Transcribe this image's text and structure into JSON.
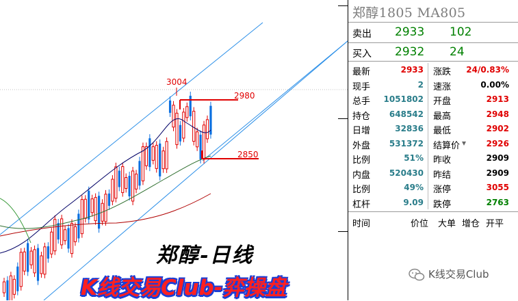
{
  "panel": {
    "title": "郑醇1805  MA805",
    "ask": {
      "label": "卖出",
      "price": "2933",
      "volume": "102"
    },
    "bid": {
      "label": "买入",
      "price": "2932",
      "volume": "24"
    },
    "left_rows": [
      {
        "label": "最新",
        "value": "2933",
        "color": "#e00000"
      },
      {
        "label": "现手",
        "value": "2",
        "color": "#2a7d8a"
      },
      {
        "label": "总手",
        "value": "1051802",
        "color": "#2a7d8a"
      },
      {
        "label": "持仓",
        "value": "648542",
        "color": "#2a7d8a"
      },
      {
        "label": "日增",
        "value": "32836",
        "color": "#2a7d8a"
      },
      {
        "label": "外盘",
        "value": "531372",
        "color": "#2a7d8a"
      },
      {
        "label": "比例",
        "value": "51%",
        "color": "#2a7d8a"
      },
      {
        "label": "内盘",
        "value": "520430",
        "color": "#2a7d8a"
      },
      {
        "label": "比例",
        "value": "49%",
        "color": "#2a7d8a"
      },
      {
        "label": "杠杆",
        "value": "9.09",
        "color": "#2a7d8a"
      }
    ],
    "right_rows": [
      {
        "label": "涨跌",
        "value": "24/0.83%",
        "color": "#e00000"
      },
      {
        "label": "速涨",
        "value": "0.00%",
        "color": "#000000"
      },
      {
        "label": "开盘",
        "value": "2913",
        "color": "#e00000"
      },
      {
        "label": "最高",
        "value": "2948",
        "color": "#e00000"
      },
      {
        "label": "最低",
        "value": "2902",
        "color": "#e00000"
      },
      {
        "label": "结算价",
        "value": "2926",
        "color": "#e00000"
      },
      {
        "label": "昨收",
        "value": "2909",
        "color": "#000000"
      },
      {
        "label": "昨结",
        "value": "2909",
        "color": "#000000"
      },
      {
        "label": "涨停",
        "value": "3055",
        "color": "#e00000"
      },
      {
        "label": "跌停",
        "value": "2763",
        "color": "#008000"
      }
    ],
    "trade_headers": [
      "时间",
      "价位",
      "大单",
      "增仓",
      "开平"
    ]
  },
  "chart": {
    "high_label": "3004",
    "resistance_label": "2980",
    "support_label": "2850",
    "title": "郑醇-日线",
    "banner": "K线交易Club-弈操盘"
  },
  "watermark": "K线交易Club",
  "colors": {
    "up": "#e00000",
    "down": "#0a6fe0",
    "channel": "#2b8fe8",
    "ma_short": "#000066",
    "ma_mid": "#2f6f2f",
    "ma_long": "#b00000",
    "ma_green": "#3a9a3a"
  }
}
